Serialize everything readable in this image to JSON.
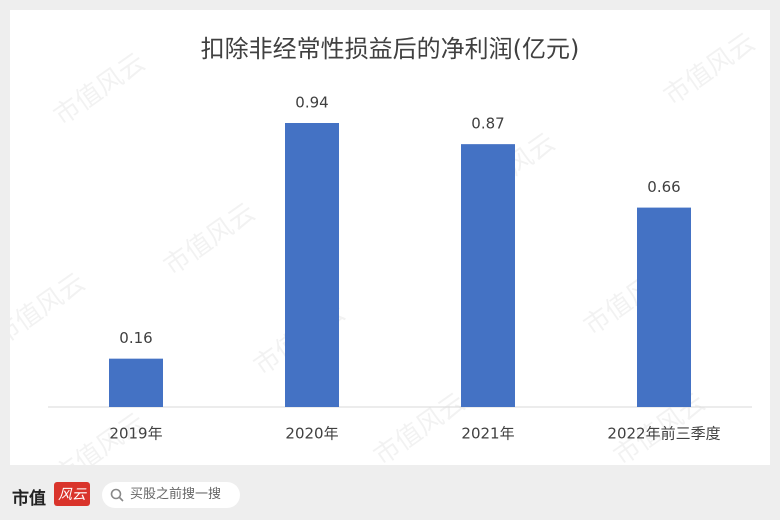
{
  "chart_data": {
    "type": "bar",
    "title": "扣除非经常性损益后的净利润(亿元)",
    "categories": [
      "2019年",
      "2020年",
      "2021年",
      "2022年前三季度"
    ],
    "values": [
      0.16,
      0.94,
      0.87,
      0.66
    ],
    "color": "#4472c4"
  },
  "watermark": "市值风云",
  "footer": {
    "logo_main": "市值",
    "logo_accent": "风云",
    "search_placeholder": "买股之前搜一搜"
  }
}
